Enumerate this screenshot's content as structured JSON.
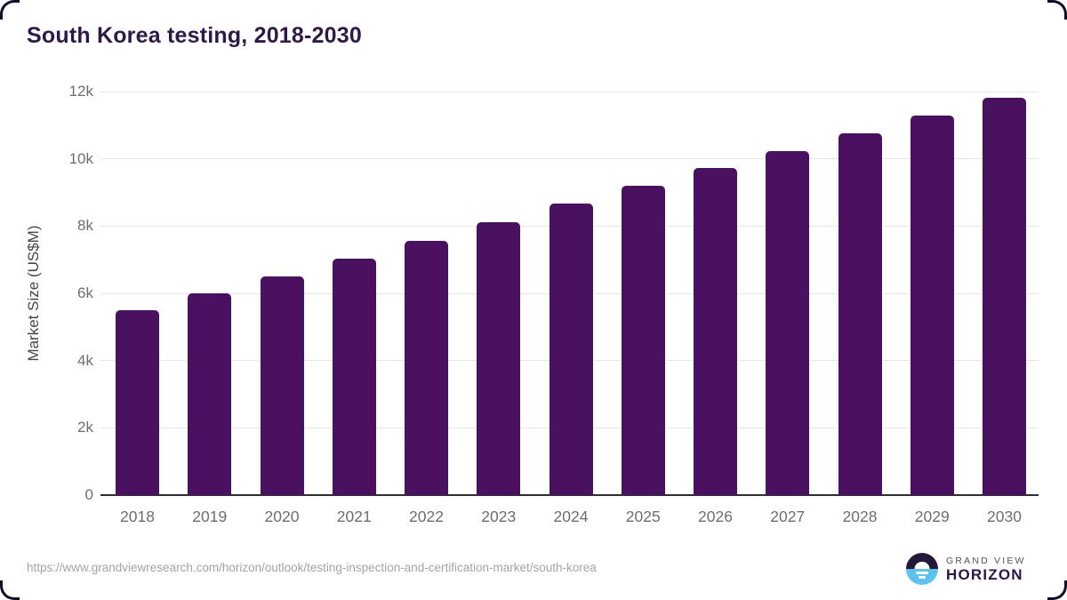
{
  "title": "South Korea testing, 2018-2030",
  "chart_data": {
    "type": "bar",
    "title": "South Korea testing, 2018-2030",
    "categories": [
      "2018",
      "2019",
      "2020",
      "2021",
      "2022",
      "2023",
      "2024",
      "2025",
      "2026",
      "2027",
      "2028",
      "2029",
      "2030"
    ],
    "values": [
      5500,
      6010,
      6500,
      7020,
      7550,
      8110,
      8670,
      9210,
      9720,
      10230,
      10750,
      11280,
      11810
    ],
    "xlabel": "",
    "ylabel": "Market Size (US$M)",
    "ylim": [
      0,
      12000
    ],
    "yticks": [
      0,
      2000,
      4000,
      6000,
      8000,
      10000,
      12000
    ],
    "ytick_labels": [
      "0",
      "2k",
      "4k",
      "6k",
      "8k",
      "10k",
      "12k"
    ],
    "grid": true,
    "legend": false,
    "bar_color": "#4a1160"
  },
  "footer": {
    "url": "https://www.grandviewresearch.com/horizon/outlook/testing-inspection-and-certification-market/south-korea",
    "logo": {
      "line1": "GRAND VIEW",
      "line2": "HORIZON"
    }
  },
  "colors": {
    "bar": "#4a1160",
    "title": "#2e1a48",
    "axis_line": "#2d2d2d",
    "gridline": "#e7e7e7",
    "tick_text": "#6e6e6e",
    "logo_dark": "#251739",
    "logo_blue": "#5fc2ee"
  }
}
